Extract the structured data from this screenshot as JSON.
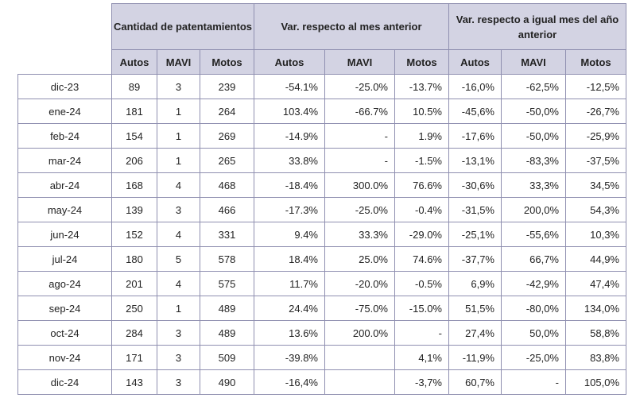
{
  "header": {
    "group1": "Cantidad de patentamientos",
    "group2": "Var. respecto al mes anterior",
    "group3": "Var. respecto a igual mes del año anterior",
    "cols": [
      "Autos",
      "MAVI",
      "Motos",
      "Autos",
      "MAVI",
      "Motos",
      "Autos",
      "MAVI",
      "Motos"
    ]
  },
  "rows": [
    {
      "month": "dic-23",
      "cells": [
        "89",
        "3",
        "239",
        "-54.1%",
        "-25.0%",
        "-13.7%",
        "-16,0%",
        "-62,5%",
        "-12,5%"
      ]
    },
    {
      "month": "ene-24",
      "cells": [
        "181",
        "1",
        "264",
        "103.4%",
        "-66.7%",
        "10.5%",
        "-45,6%",
        "-50,0%",
        "-26,7%"
      ]
    },
    {
      "month": "feb-24",
      "cells": [
        "154",
        "1",
        "269",
        "-14.9%",
        "-",
        "1.9%",
        "-17,6%",
        "-50,0%",
        "-25,9%"
      ]
    },
    {
      "month": "mar-24",
      "cells": [
        "206",
        "1",
        "265",
        "33.8%",
        "-",
        "-1.5%",
        "-13,1%",
        "-83,3%",
        "-37,5%"
      ]
    },
    {
      "month": "abr-24",
      "cells": [
        "168",
        "4",
        "468",
        "-18.4%",
        "300.0%",
        "76.6%",
        "-30,6%",
        "33,3%",
        "34,5%"
      ]
    },
    {
      "month": "may-24",
      "cells": [
        "139",
        "3",
        "466",
        "-17.3%",
        "-25.0%",
        "-0.4%",
        "-31,5%",
        "200,0%",
        "54,3%"
      ]
    },
    {
      "month": "jun-24",
      "cells": [
        "152",
        "4",
        "331",
        "9.4%",
        "33.3%",
        "-29.0%",
        "-25,1%",
        "-55,6%",
        "10,3%"
      ]
    },
    {
      "month": "jul-24",
      "cells": [
        "180",
        "5",
        "578",
        "18.4%",
        "25.0%",
        "74.6%",
        "-37,7%",
        "66,7%",
        "44,9%"
      ]
    },
    {
      "month": "ago-24",
      "cells": [
        "201",
        "4",
        "575",
        "11.7%",
        "-20.0%",
        "-0.5%",
        "6,9%",
        "-42,9%",
        "47,4%"
      ]
    },
    {
      "month": "sep-24",
      "cells": [
        "250",
        "1",
        "489",
        "24.4%",
        "-75.0%",
        "-15.0%",
        "51,5%",
        "-80,0%",
        "134,0%"
      ]
    },
    {
      "month": "oct-24",
      "cells": [
        "284",
        "3",
        "489",
        "13.6%",
        "200.0%",
        "-",
        "27,4%",
        "50,0%",
        "58,8%"
      ]
    },
    {
      "month": "nov-24",
      "cells": [
        "171",
        "3",
        "509",
        "-39.8%",
        "",
        "4,1%",
        "-11,9%",
        "-25,0%",
        "83,8%"
      ]
    },
    {
      "month": "dic-24",
      "cells": [
        "143",
        "3",
        "490",
        "-16,4%",
        "",
        "-3,7%",
        "60,7%",
        "-",
        "105,0%"
      ]
    }
  ]
}
